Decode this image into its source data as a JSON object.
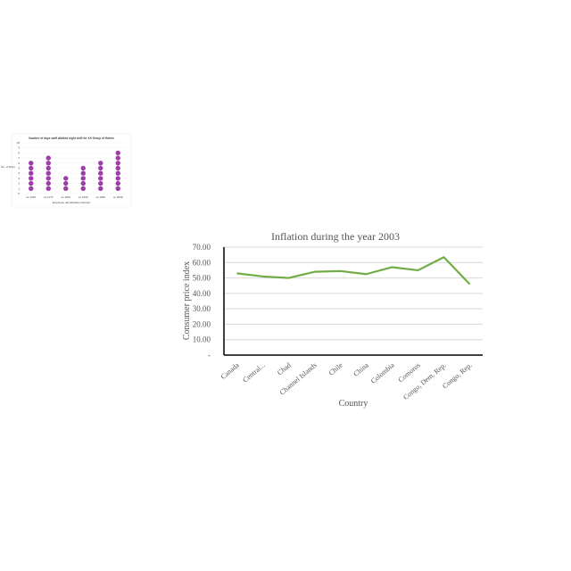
{
  "chart_data": [
    {
      "type": "scatter",
      "title": "Number of days staff allotted night shift for XX Group of Hotels",
      "xlabel": "Employee Identification Number",
      "ylabel": "No. of Days",
      "ylim": [
        0,
        10
      ],
      "y_ticks": [
        "0",
        "1",
        "2",
        "3",
        "4",
        "5",
        "6",
        "7",
        "8",
        "9",
        "10"
      ],
      "categories": [
        "ss 1015",
        "ss 1176",
        "ss 1604",
        "ss 1640",
        "ss 1656",
        "ss 2049"
      ],
      "values": [
        6,
        7,
        3,
        5,
        6,
        8
      ],
      "colors": {
        "dots": "#9b3fa6"
      },
      "grid": true
    },
    {
      "type": "line",
      "title": "Inflation during the year 2003",
      "xlabel": "Country",
      "ylabel": "Consumer price index",
      "ylim": [
        0,
        70
      ],
      "y_ticks": [
        "-",
        "10.00",
        "20.00",
        "30.00",
        "40.00",
        "50.00",
        "60.00",
        "70.00"
      ],
      "categories": [
        "Canada",
        "Central...",
        "Chad",
        "Channel Islands",
        "Chile",
        "China",
        "Colombia",
        "Comoros",
        "Congo, Dem. Rep.",
        "Congo, Rep."
      ],
      "series": [
        {
          "values": [
            53,
            51,
            50,
            54,
            54.5,
            52.5,
            57,
            55,
            63.5,
            46
          ]
        }
      ],
      "colors": {
        "line": "#70ad47",
        "grid": "#d9d9d9",
        "axis": "#000000"
      },
      "grid": true,
      "legend": "none"
    }
  ]
}
